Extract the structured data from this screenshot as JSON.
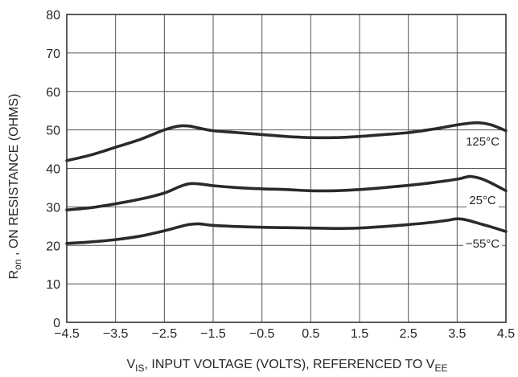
{
  "chart_data": {
    "type": "line",
    "title": "",
    "ylabel": {
      "main": "R",
      "sub": "on",
      "rest": " , ON RESISTANCE (OHMS)"
    },
    "xlabel": {
      "main": "V",
      "sub": "IS",
      "rest": ", INPUT VOLTAGE (VOLTS), REFERENCED TO V",
      "sub2": "EE"
    },
    "xlim": [
      -4.5,
      4.5
    ],
    "ylim": [
      0,
      80
    ],
    "x_ticks": [
      "−4.5",
      "−3.5",
      "−2.5",
      "−1.5",
      "−0.5",
      "0.5",
      "1.5",
      "2.5",
      "3.5",
      "4.5"
    ],
    "y_ticks": [
      "0",
      "10",
      "20",
      "30",
      "40",
      "50",
      "60",
      "70",
      "80"
    ],
    "grid": true,
    "series": [
      {
        "name": "125°C",
        "label": "125°C",
        "x": [
          -4.5,
          -4.0,
          -3.5,
          -3.0,
          -2.5,
          -2.2,
          -2.0,
          -1.8,
          -1.5,
          -1.0,
          -0.5,
          0.0,
          0.5,
          1.0,
          1.5,
          2.0,
          2.5,
          3.0,
          3.5,
          3.8,
          4.0,
          4.2,
          4.5
        ],
        "y": [
          42.0,
          43.5,
          45.5,
          47.5,
          50.0,
          51.0,
          51.0,
          50.5,
          49.8,
          49.3,
          48.8,
          48.3,
          48.0,
          48.0,
          48.3,
          48.8,
          49.3,
          50.2,
          51.3,
          51.8,
          51.8,
          51.3,
          49.8
        ]
      },
      {
        "name": "25°C",
        "label": "25°C",
        "x": [
          -4.5,
          -4.0,
          -3.5,
          -3.0,
          -2.5,
          -2.2,
          -2.0,
          -1.8,
          -1.5,
          -1.0,
          -0.5,
          0.0,
          0.5,
          1.0,
          1.5,
          2.0,
          2.5,
          3.0,
          3.5,
          3.7,
          3.8,
          4.0,
          4.2,
          4.5
        ],
        "y": [
          29.2,
          29.8,
          30.8,
          32.0,
          33.6,
          35.2,
          36.0,
          36.0,
          35.5,
          35.0,
          34.7,
          34.5,
          34.2,
          34.2,
          34.5,
          35.0,
          35.6,
          36.3,
          37.2,
          37.8,
          37.9,
          37.3,
          36.2,
          34.2
        ]
      },
      {
        "name": "−55°C",
        "label": "−55°C",
        "x": [
          -4.5,
          -4.0,
          -3.5,
          -3.0,
          -2.5,
          -2.2,
          -2.0,
          -1.8,
          -1.5,
          -1.0,
          -0.5,
          0.0,
          0.5,
          1.0,
          1.5,
          2.0,
          2.5,
          3.0,
          3.3,
          3.5,
          3.7,
          4.0,
          4.2,
          4.5
        ],
        "y": [
          20.5,
          20.9,
          21.5,
          22.4,
          23.8,
          24.8,
          25.4,
          25.6,
          25.2,
          24.9,
          24.7,
          24.6,
          24.5,
          24.4,
          24.5,
          24.9,
          25.4,
          26.0,
          26.5,
          26.9,
          26.6,
          25.5,
          24.8,
          23.6
        ]
      }
    ]
  }
}
